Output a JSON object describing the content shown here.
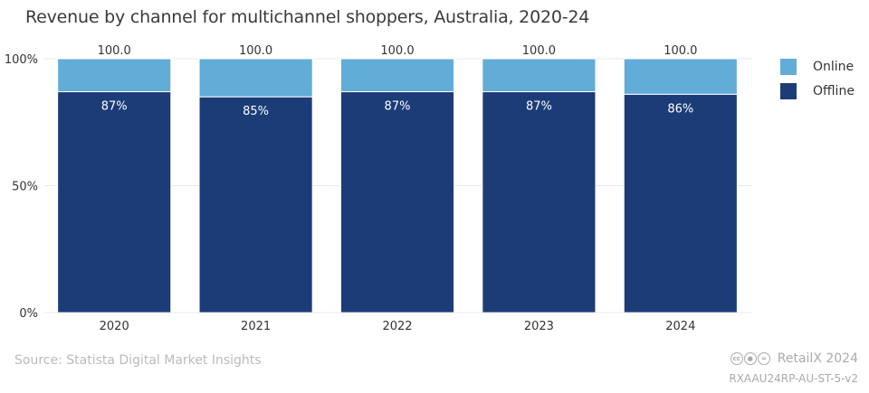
{
  "chart_data": {
    "type": "bar",
    "stacked": true,
    "title": "Revenue by channel for multichannel shoppers, Australia 2020-24",
    "title_display": "Revenue by channel for multichannel shoppers, Australia, 2020-24",
    "categories": [
      "2020",
      "2021",
      "2022",
      "2023",
      "2024"
    ],
    "series": [
      {
        "name": "Offline",
        "values": [
          87,
          85,
          87,
          87,
          86
        ],
        "color": "#1c3c78",
        "labels": [
          "87%",
          "85%",
          "87%",
          "87%",
          "86%"
        ]
      },
      {
        "name": "Online",
        "values": [
          13,
          15,
          13,
          13,
          14
        ],
        "color": "#62acd8"
      }
    ],
    "totals": [
      "100.0",
      "100.0",
      "100.0",
      "100.0",
      "100.0"
    ],
    "ylim": [
      0,
      100
    ],
    "yticks": [
      0,
      50,
      100
    ],
    "ytick_labels": [
      "0%",
      "50%",
      "100%"
    ],
    "xlabel": "",
    "ylabel": "",
    "legend_position": "right"
  },
  "legend": [
    {
      "label": "Online",
      "color": "#62acd8"
    },
    {
      "label": "Offline",
      "color": "#1c3c78"
    }
  ],
  "footer": {
    "source": "Source: Statista Digital Market Insights",
    "brand": "RetailX 2024",
    "code": "RXAAU24RP-AU-ST-5-v2",
    "license_icons": [
      "cc",
      "by",
      "nd"
    ]
  }
}
